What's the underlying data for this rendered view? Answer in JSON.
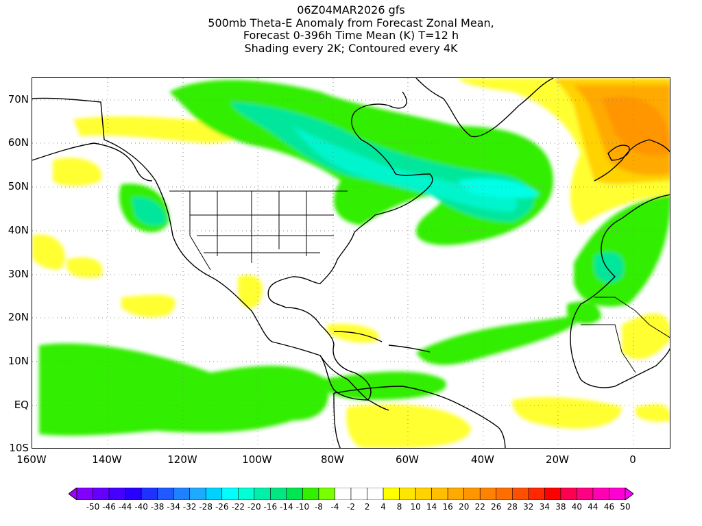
{
  "title": {
    "lines": [
      "06Z04MAR2026 gfs",
      "500mb Theta-E Anomaly from Forecast Zonal Mean,",
      "Forecast 0-396h Time Mean (K) T=12 h",
      "Shading every 2K; Contoured every 4K"
    ]
  },
  "map": {
    "projection": "lat-lon",
    "lon_range": [
      -160,
      10
    ],
    "lat_range": [
      -10,
      75
    ],
    "graticule": "dotted",
    "lat_labels": [
      "70N",
      "60N",
      "50N",
      "40N",
      "30N",
      "20N",
      "10N",
      "EQ",
      "10S"
    ],
    "lat_values": [
      70,
      60,
      50,
      40,
      30,
      20,
      10,
      0,
      -10
    ],
    "lon_labels": [
      "160W",
      "140W",
      "120W",
      "100W",
      "80W",
      "60W",
      "40W",
      "20W",
      "0"
    ],
    "lon_values": [
      -160,
      -140,
      -120,
      -100,
      -80,
      -60,
      -40,
      -20,
      0
    ],
    "features": [
      {
        "name": "negative-anomaly-canada-north-atlantic",
        "lon": -55,
        "lat": 55,
        "color": "#00ffd2",
        "min_value": -22
      },
      {
        "name": "positive-anomaly-europe",
        "lon": -5,
        "lat": 60,
        "color": "#ff8c00",
        "max_value": 22
      },
      {
        "name": "negative-anomaly-pacific-northwest",
        "lon": -130,
        "lat": 45,
        "color": "#00e6b4"
      },
      {
        "name": "negative-anomaly-northwest-africa",
        "lon": -10,
        "lat": 32,
        "color": "#00e6b4"
      }
    ]
  },
  "colorbar": {
    "labels": [
      "-50",
      "-46",
      "-44",
      "-40",
      "-38",
      "-34",
      "-32",
      "-28",
      "-26",
      "-22",
      "-20",
      "-16",
      "-14",
      "-10",
      "-8",
      "-4",
      "-2",
      "2",
      "4",
      "8",
      "10",
      "14",
      "16",
      "20",
      "22",
      "26",
      "28",
      "32",
      "34",
      "38",
      "40",
      "44",
      "46",
      "50"
    ],
    "colors": [
      "#a000ff",
      "#8200ff",
      "#6400ff",
      "#4600ff",
      "#2800ff",
      "#1e32ff",
      "#1e5aff",
      "#1e82ff",
      "#1eaaff",
      "#00d2ff",
      "#00ffff",
      "#00ffd2",
      "#00f0aa",
      "#00e682",
      "#00e650",
      "#32f000",
      "#78ff00",
      "#ffffff",
      "#ffffff",
      "#ffffff",
      "#ffff00",
      "#ffe600",
      "#ffd200",
      "#ffbe00",
      "#ffaa00",
      "#ff9600",
      "#ff8200",
      "#ff6e00",
      "#ff5000",
      "#ff2800",
      "#ff0000",
      "#ff0050",
      "#ff0082",
      "#ff00b4",
      "#ff00d2",
      "#ff00ff"
    ]
  }
}
